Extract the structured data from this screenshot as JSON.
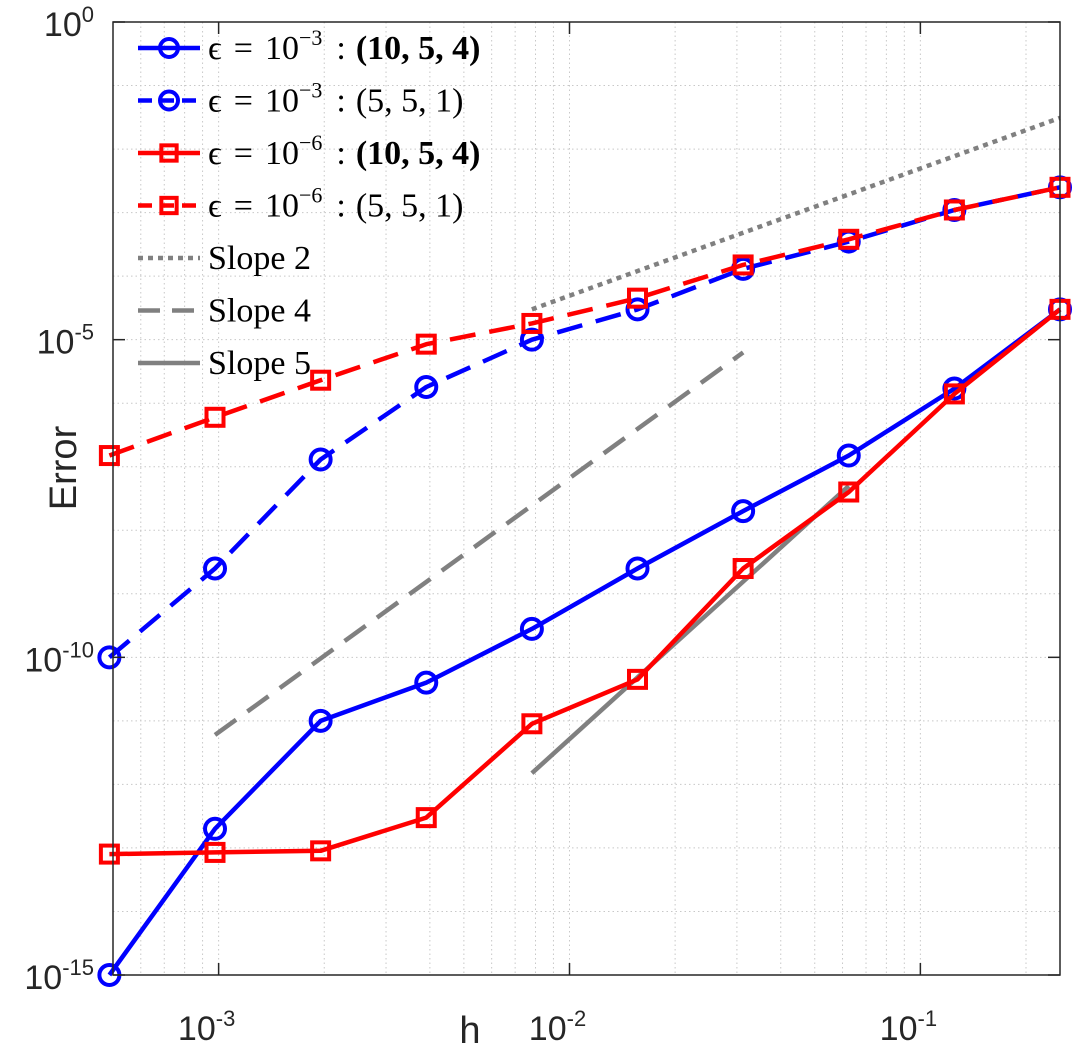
{
  "chart_data": {
    "type": "line",
    "scale": {
      "x": "log",
      "y": "log"
    },
    "title": "",
    "xlabel": "h",
    "ylabel": "Error",
    "xlim": [
      0.0005,
      0.25
    ],
    "ylim": [
      1e-15,
      1
    ],
    "grid": true,
    "minor_grid": true,
    "x_ticks": [
      {
        "value": 0.001,
        "base": "10",
        "exp": "-3"
      },
      {
        "value": 0.01,
        "base": "10",
        "exp": "-2"
      },
      {
        "value": 0.1,
        "base": "10",
        "exp": "-1"
      }
    ],
    "y_ticks": [
      {
        "value": 1,
        "base": "10",
        "exp": "0"
      },
      {
        "value": 1e-05,
        "base": "10",
        "exp": "-5"
      },
      {
        "value": 1e-10,
        "base": "10",
        "exp": "-10"
      },
      {
        "value": 1e-15,
        "base": "10",
        "exp": "-15"
      }
    ],
    "x": [
      0.00048828125,
      0.0009765625,
      0.001953125,
      0.00390625,
      0.0078125,
      0.015625,
      0.03125,
      0.0625,
      0.125,
      0.25
    ],
    "legend_position": "top-left",
    "series": [
      {
        "name": "eps1e-3-bold",
        "legend": {
          "eps": "ϵ",
          "eq": "=",
          "base": "10",
          "exp": "−3",
          "colon": ":",
          "tuple": "(10, 5, 4)",
          "bold": true
        },
        "color": "#0000ff",
        "line_style": "solid",
        "marker": "circle",
        "values": [
          1e-15,
          2e-13,
          1e-11,
          4e-11,
          2.8e-10,
          2.5e-09,
          2e-08,
          1.5e-07,
          1.7e-06,
          3e-05
        ]
      },
      {
        "name": "eps1e-3-plain",
        "legend": {
          "eps": "ϵ",
          "eq": "=",
          "base": "10",
          "exp": "−3",
          "colon": ":",
          "tuple": "(5, 5, 1)",
          "bold": false
        },
        "color": "#0000ff",
        "line_style": "dashed",
        "marker": "circle",
        "values": [
          1e-10,
          2.5e-09,
          1.3e-07,
          1.8e-06,
          1e-05,
          3e-05,
          0.00013,
          0.00035,
          0.0011,
          0.0025
        ]
      },
      {
        "name": "eps1e-6-bold",
        "legend": {
          "eps": "ϵ",
          "eq": "=",
          "base": "10",
          "exp": "−6",
          "colon": ":",
          "tuple": "(10, 5, 4)",
          "bold": true
        },
        "color": "#ff0000",
        "line_style": "solid",
        "marker": "square",
        "values": [
          8e-14,
          8.5e-14,
          9e-14,
          3e-13,
          9e-12,
          4.5e-11,
          2.5e-09,
          4e-08,
          1.4e-06,
          3e-05
        ]
      },
      {
        "name": "eps1e-6-plain",
        "legend": {
          "eps": "ϵ",
          "eq": "=",
          "base": "10",
          "exp": "−6",
          "colon": ":",
          "tuple": "(5, 5, 1)",
          "bold": false
        },
        "color": "#ff0000",
        "line_style": "dashed",
        "marker": "square",
        "values": [
          1.5e-07,
          6e-07,
          2.3e-06,
          8.5e-06,
          1.8e-05,
          4.5e-05,
          0.00015,
          0.00038,
          0.0011,
          0.0025
        ]
      }
    ],
    "reference_lines": [
      {
        "name": "slope-2",
        "label": "Slope 2",
        "color": "#808080",
        "line_style": "dotted",
        "x": [
          0.0078125,
          0.25
        ],
        "y": [
          3e-05,
          0.031
        ]
      },
      {
        "name": "slope-4",
        "label": "Slope 4",
        "color": "#808080",
        "line_style": "dashed",
        "x": [
          0.0009765625,
          0.03125
        ],
        "y": [
          6e-12,
          6.3e-06
        ]
      },
      {
        "name": "slope-5",
        "label": "Slope 5",
        "color": "#808080",
        "line_style": "solid",
        "x": [
          0.0078125,
          0.0625
        ],
        "y": [
          1.5e-12,
          5e-08
        ]
      }
    ]
  }
}
